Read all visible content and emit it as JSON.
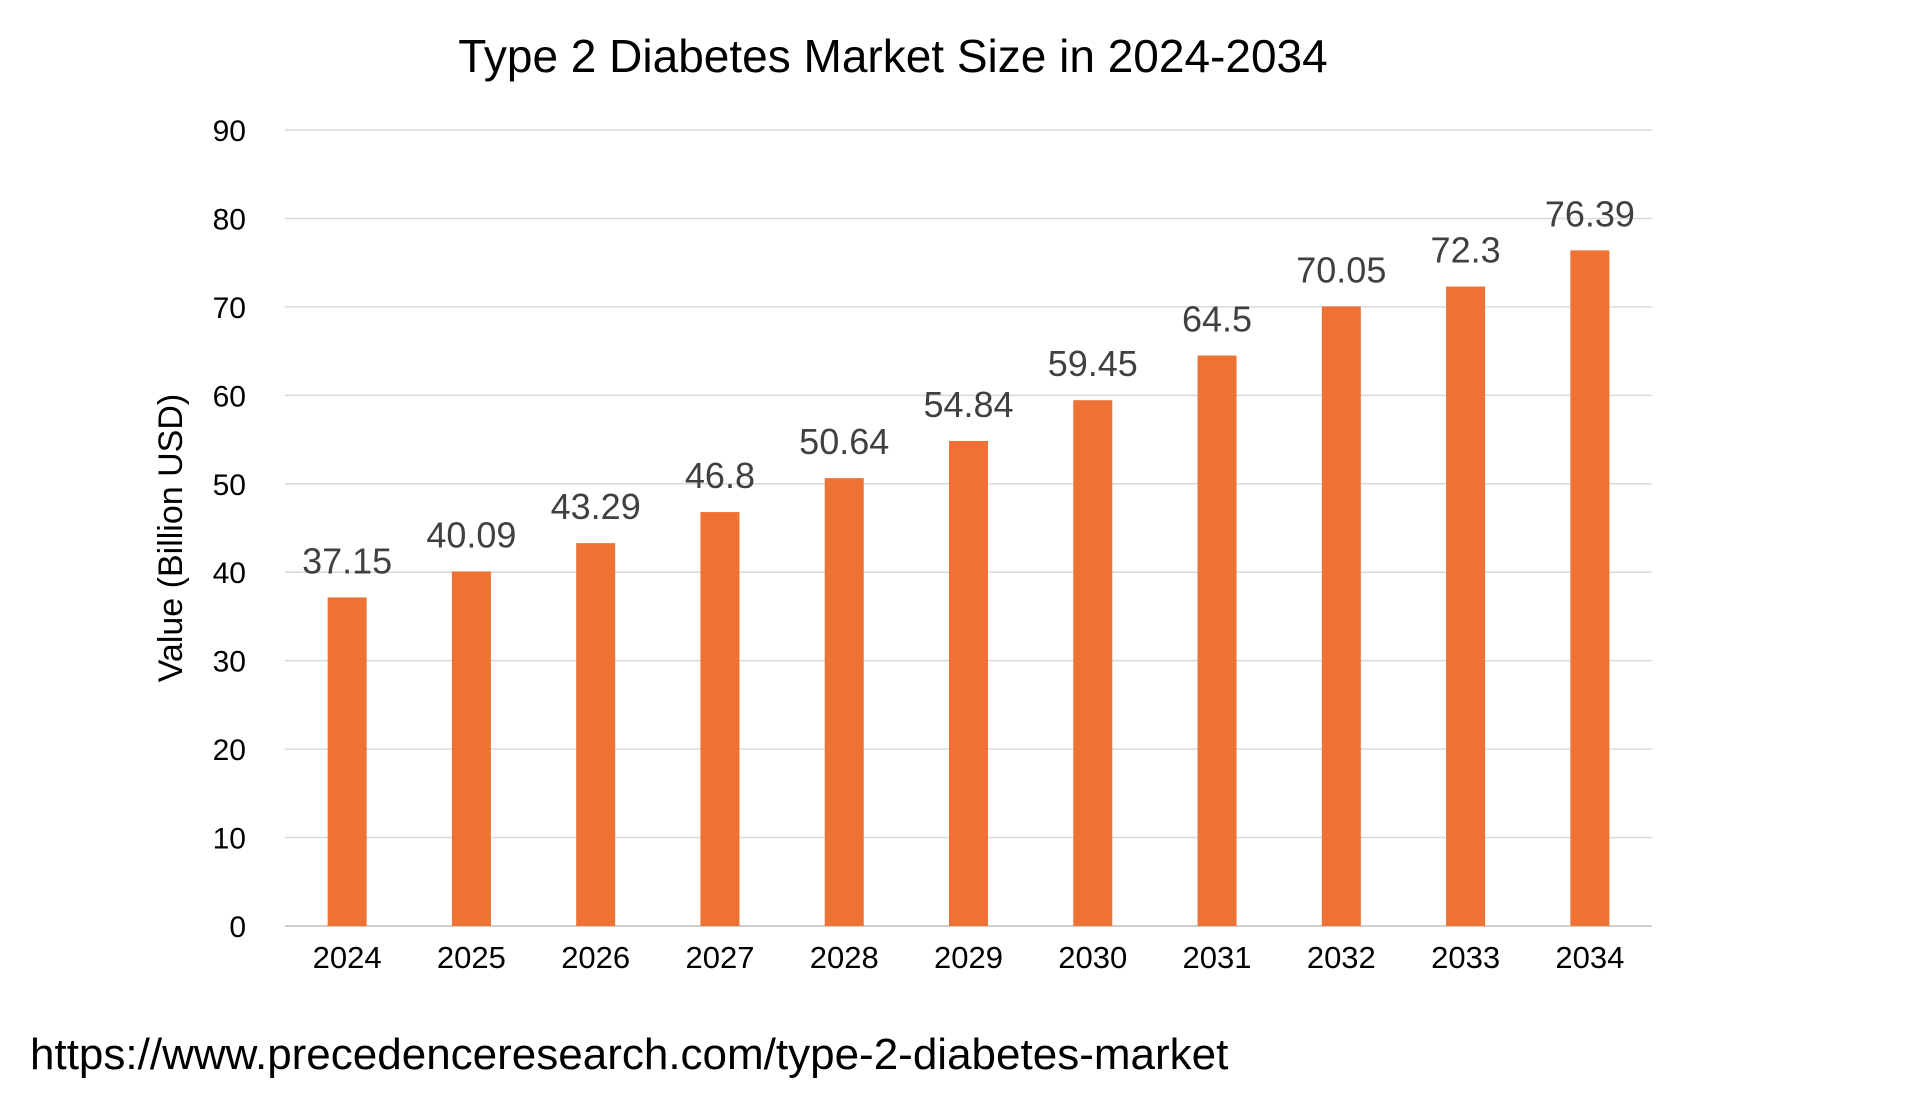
{
  "chart_data": {
    "type": "bar",
    "title": "Type 2 Diabetes Market Size in 2024-2034",
    "xlabel": "",
    "ylabel": "Value (Billion USD)",
    "categories": [
      "2024",
      "2025",
      "2026",
      "2027",
      "2028",
      "2029",
      "2030",
      "2031",
      "2032",
      "2033",
      "2034"
    ],
    "values": [
      37.15,
      40.09,
      43.29,
      46.8,
      50.64,
      54.84,
      59.45,
      64.5,
      70.05,
      72.3,
      76.39
    ],
    "data_labels": [
      "37.15",
      "40.09",
      "43.29",
      "46.8",
      "50.64",
      "54.84",
      "59.45",
      "64.5",
      "70.05",
      "72.3",
      "76.39"
    ],
    "ylim": [
      0,
      90
    ],
    "yticks": [
      0,
      10,
      20,
      30,
      40,
      50,
      60,
      70,
      80,
      90
    ],
    "grid": true,
    "legend": "none",
    "bar_color": "#ed7233"
  },
  "source_text": "https://www.precedenceresearch.com/type-2-diabetes-market"
}
